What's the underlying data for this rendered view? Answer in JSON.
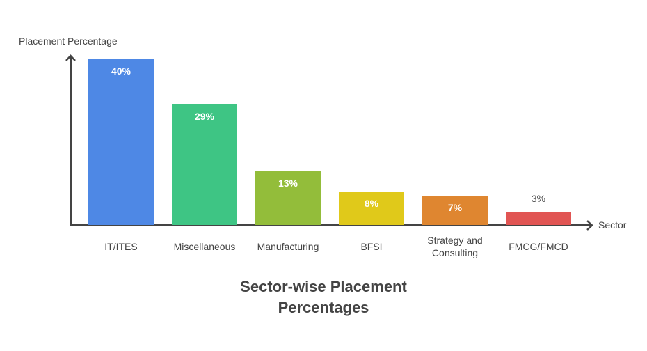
{
  "chart_data": {
    "type": "bar",
    "title": "Sector-wise Placement Percentages",
    "xlabel": "Sector",
    "ylabel": "Placement Percentage",
    "categories": [
      "IT/ITES",
      "Miscellaneous",
      "Manufacturing",
      "BFSI",
      "Strategy and Consulting",
      "FMCG/FMCD"
    ],
    "values": [
      40,
      29,
      13,
      8,
      7,
      3
    ],
    "value_labels": [
      "40%",
      "29%",
      "13%",
      "8%",
      "7%",
      "3%"
    ],
    "colors": [
      "#4e88e5",
      "#3ec584",
      "#93bd3a",
      "#e0c91a",
      "#df8630",
      "#e15553"
    ],
    "ylim": [
      0,
      40
    ],
    "grid": false,
    "legend": "none"
  },
  "title_line1": "Sector-wise Placement",
  "title_line2": "Percentages"
}
